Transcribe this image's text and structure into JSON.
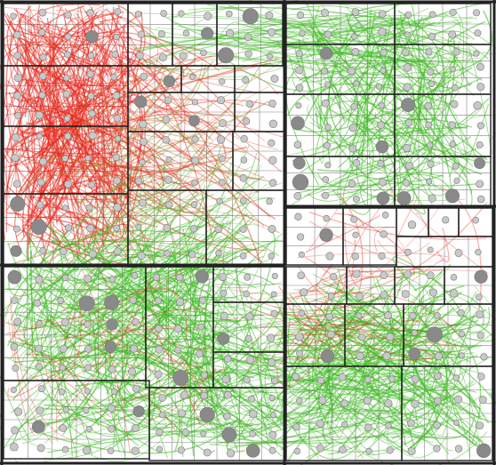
{
  "diagram": {
    "kind": "hierarchical treemap with bundled edges",
    "background_color": "#ffffff",
    "grid_color": "#222222",
    "fine_grid_color": "#555555",
    "node_color": "#c8c8c8",
    "hub_node_color": "#8a8a8a",
    "edge_colors": {
      "red": "#e8271b",
      "green": "#3cb81f",
      "olive": "#9a8a2a"
    },
    "regions": [
      {
        "id": "top-left-cluster",
        "dominant_edge_color": "red"
      },
      {
        "id": "top-right-cluster",
        "dominant_edge_color": "green"
      },
      {
        "id": "bottom-left-cluster",
        "dominant_edge_color": "green"
      },
      {
        "id": "bottom-right-cluster",
        "dominant_edge_color": "green"
      }
    ]
  }
}
